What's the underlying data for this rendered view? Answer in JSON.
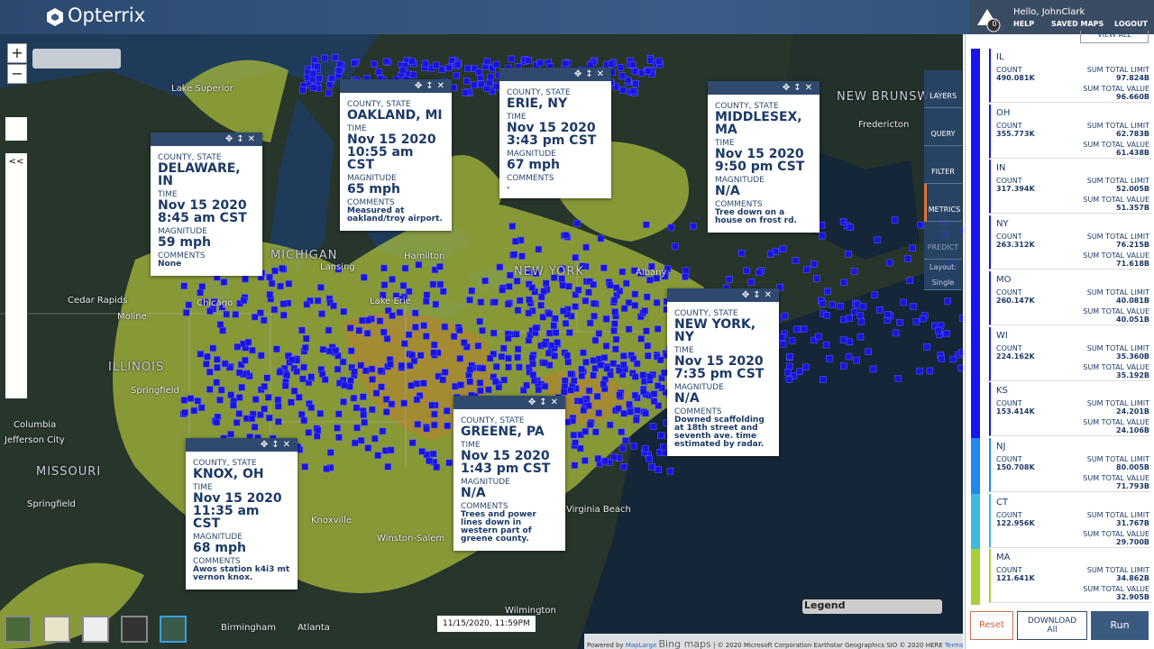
{
  "header": {
    "logo": "Opterrix",
    "alerts": "0",
    "greeting": "Hello, JohnClark",
    "nav": [
      "HELP",
      "SAVED MAPS",
      "LOGOUT"
    ]
  },
  "map": {
    "popup_labels": {
      "location": "COUNTY, STATE",
      "time": "TIME",
      "magnitude": "MAGNITUDE",
      "comments": "COMMENTS"
    },
    "popups": [
      {
        "place": "DELAWARE, IN",
        "date": "Nov 15 2020",
        "time": "8:45 am CST",
        "magnitude": "59 mph",
        "comments": "None"
      },
      {
        "place": "OAKLAND, MI",
        "date": "Nov 15 2020",
        "time": "10:55 am CST",
        "magnitude": "65 mph",
        "comments": "Measured at oakland/troy airport."
      },
      {
        "place": "ERIE, NY",
        "date": "Nov 15 2020",
        "time": "3:43 pm CST",
        "magnitude": "67 mph",
        "comments": "."
      },
      {
        "place": "MIDDLESEX, MA",
        "date": "Nov 15 2020",
        "time": "9:50 pm CST",
        "magnitude": "N/A",
        "comments": "Tree down on a house on frost rd."
      },
      {
        "place": "NEW YORK, NY",
        "date": "Nov 15 2020",
        "time": "7:35 pm CST",
        "magnitude": "N/A",
        "comments": "Downed scaffolding at 18th street and seventh ave. time estimated by radar."
      },
      {
        "place": "GREENE, PA",
        "date": "Nov 15 2020",
        "time": "1:43 pm CST",
        "magnitude": "N/A",
        "comments": "Trees and power lines down in western part of greene county."
      },
      {
        "place": "KNOX, OH",
        "date": "Nov 15 2020",
        "time": "11:35 am CST",
        "magnitude": "68 mph",
        "comments": "Awos station k4i3 mt vernon knox."
      }
    ],
    "place_labels": [
      "Lake Superior",
      "MICHIGAN",
      "Lansing",
      "Chicago",
      "Cedar Rapids",
      "Moline",
      "ILLINOIS",
      "Springfield",
      "Columbia",
      "Jefferson City",
      "MISSOURI",
      "Springfield",
      "Hamilton",
      "Lake Erie",
      "NEW YORK",
      "Albany",
      "NEW BRUNSWICK",
      "Fredericton",
      "Virginia Beach",
      "Winston-Salem",
      "Knoxville",
      "Atlanta",
      "Birmingham",
      "Wilmington"
    ],
    "zoom": [
      "+",
      "−"
    ],
    "collapse": "<<",
    "timestamp": "11/15/2020, 11:59PM",
    "legend": "Legend",
    "attribution": {
      "powered": "Powered by",
      "provider": "MapLarge",
      "bing": "Bing maps",
      "copyright": "| © 2020 Microsoft Corporation Earthstar Geographics SIO © 2020 HERE",
      "terms": "Terms of Use"
    }
  },
  "tools": [
    "LAYERS",
    "QUERY",
    "FILTER",
    "METRICS",
    "PREDICT"
  ],
  "layout": {
    "label": "Layout:",
    "value": "Single"
  },
  "sidebar": {
    "view_all": "VIEW ALL",
    "labels": {
      "count": "COUNT",
      "limit": "SUM TOTAL LIMIT",
      "value": "SUM TOTAL VALUE"
    },
    "items": [
      {
        "state": "IL",
        "count": "490.081K",
        "limit": "97.824B",
        "value": "96.660B",
        "color": "#1a14f0"
      },
      {
        "state": "OH",
        "count": "355.773K",
        "limit": "62.783B",
        "value": "61.438B",
        "color": "#1a14f0"
      },
      {
        "state": "IN",
        "count": "317.394K",
        "limit": "52.005B",
        "value": "51.357B",
        "color": "#1a14f0"
      },
      {
        "state": "NY",
        "count": "263.312K",
        "limit": "76.215B",
        "value": "71.618B",
        "color": "#1a14f0"
      },
      {
        "state": "MO",
        "count": "260.147K",
        "limit": "40.081B",
        "value": "40.051B",
        "color": "#1a14f0"
      },
      {
        "state": "WI",
        "count": "224.162K",
        "limit": "35.360B",
        "value": "35.192B",
        "color": "#1a14f0"
      },
      {
        "state": "KS",
        "count": "153.414K",
        "limit": "24.201B",
        "value": "24.106B",
        "color": "#1a14f0"
      },
      {
        "state": "NJ",
        "count": "150.708K",
        "limit": "80.005B",
        "value": "71.793B",
        "color": "#1e88f0"
      },
      {
        "state": "CT",
        "count": "122.956K",
        "limit": "31.767B",
        "value": "29.700B",
        "color": "#3fb7e0"
      },
      {
        "state": "MA",
        "count": "121.641K",
        "limit": "34.862B",
        "value": "32.905B",
        "color": "#a8cf3a"
      }
    ],
    "buttons": {
      "reset": "Reset",
      "download": "DOWNLOAD",
      "download_sub": "All",
      "run": "Run"
    }
  }
}
